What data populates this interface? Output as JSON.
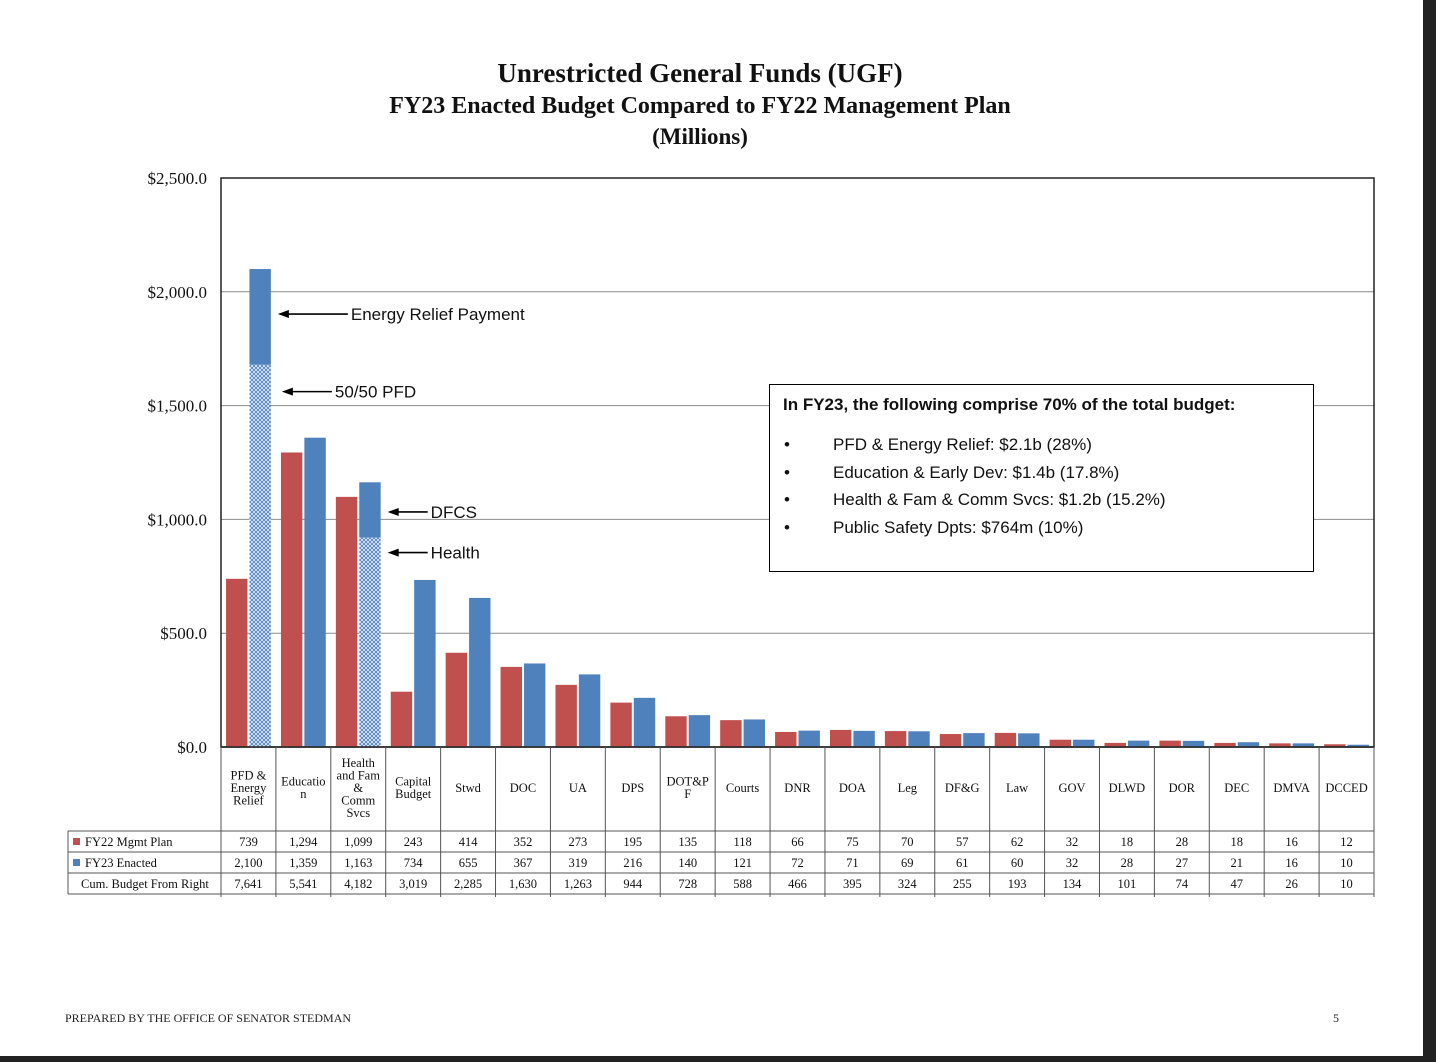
{
  "chart_data": {
    "type": "bar",
    "title": "Unrestricted General Funds (UGF)",
    "subtitle": "FY23 Enacted Budget Compared to FY22 Management Plan",
    "subtitle2": "(Millions)",
    "ylim": [
      0,
      2500
    ],
    "yticks": [
      "$0.0",
      "$500.0",
      "$1,000.0",
      "$1,500.0",
      "$2,000.0",
      "$2,500.0"
    ],
    "ytick_values": [
      0,
      500,
      1000,
      1500,
      2000,
      2500
    ],
    "categories": [
      [
        "PFD &",
        "Energy",
        "Relief"
      ],
      [
        "Educatio",
        "n"
      ],
      [
        "Health",
        "and Fam",
        "&",
        "Comm",
        "Svcs"
      ],
      [
        "Capital",
        "Budget"
      ],
      [
        "Stwd"
      ],
      [
        "DOC"
      ],
      [
        "UA"
      ],
      [
        "DPS"
      ],
      [
        "DOT&P",
        "F"
      ],
      [
        "Courts"
      ],
      [
        "DNR"
      ],
      [
        "DOA"
      ],
      [
        "Leg"
      ],
      [
        "DF&G"
      ],
      [
        "Law"
      ],
      [
        "GOV"
      ],
      [
        "DLWD"
      ],
      [
        "DOR"
      ],
      [
        "DEC"
      ],
      [
        "DMVA"
      ],
      [
        "DCCED"
      ]
    ],
    "series": [
      {
        "name": "FY22 Mgmt Plan",
        "color": "#c0504d",
        "values": [
          739,
          1294,
          1099,
          243,
          414,
          352,
          273,
          195,
          135,
          118,
          66,
          75,
          70,
          57,
          62,
          32,
          18,
          28,
          18,
          16,
          12
        ],
        "labels": [
          "739",
          "1,294",
          "1,099",
          "243",
          "414",
          "352",
          "273",
          "195",
          "135",
          "118",
          "66",
          "75",
          "70",
          "57",
          "62",
          "32",
          "18",
          "28",
          "18",
          "16",
          "12"
        ]
      },
      {
        "name": "FY23 Enacted",
        "color": "#4f81bd",
        "values": [
          2100,
          1359,
          1163,
          734,
          655,
          367,
          319,
          216,
          140,
          121,
          72,
          71,
          69,
          61,
          60,
          32,
          28,
          27,
          21,
          16,
          10
        ],
        "labels": [
          "2,100",
          "1,359",
          "1,163",
          "734",
          "655",
          "367",
          "319",
          "216",
          "140",
          "121",
          "72",
          "71",
          "69",
          "61",
          "60",
          "32",
          "28",
          "27",
          "21",
          "16",
          "10"
        ],
        "segments": [
          {
            "category_index": 0,
            "lower_value": 1680,
            "lower_label": "50/50 PFD",
            "upper_label": "Energy Relief Payment"
          },
          {
            "category_index": 2,
            "lower_value": 920,
            "lower_label": "Health",
            "upper_label": "DFCS"
          }
        ]
      }
    ],
    "table_extra_row": {
      "name": "Cum. Budget From Right",
      "labels": [
        "7,641",
        "5,541",
        "4,182",
        "3,019",
        "2,285",
        "1,630",
        "1,263",
        "944",
        "728",
        "588",
        "466",
        "395",
        "324",
        "255",
        "193",
        "134",
        "101",
        "74",
        "47",
        "26",
        "10"
      ]
    },
    "grid": true,
    "legend": "data-table-left"
  },
  "infobox": {
    "heading": "In FY23, the following comprise 70% of the total budget:",
    "bullet_symbol": "•",
    "items": [
      "PFD & Energy Relief:  $2.1b (28%)",
      "Education & Early Dev: $1.4b (17.8%)",
      "Health & Fam & Comm Svcs: $1.2b (15.2%)",
      "Public Safety Dpts: $764m (10%)"
    ]
  },
  "footer": {
    "prepared_by": "PREPARED BY THE OFFICE OF SENATOR STEDMAN",
    "page_number": "5"
  }
}
